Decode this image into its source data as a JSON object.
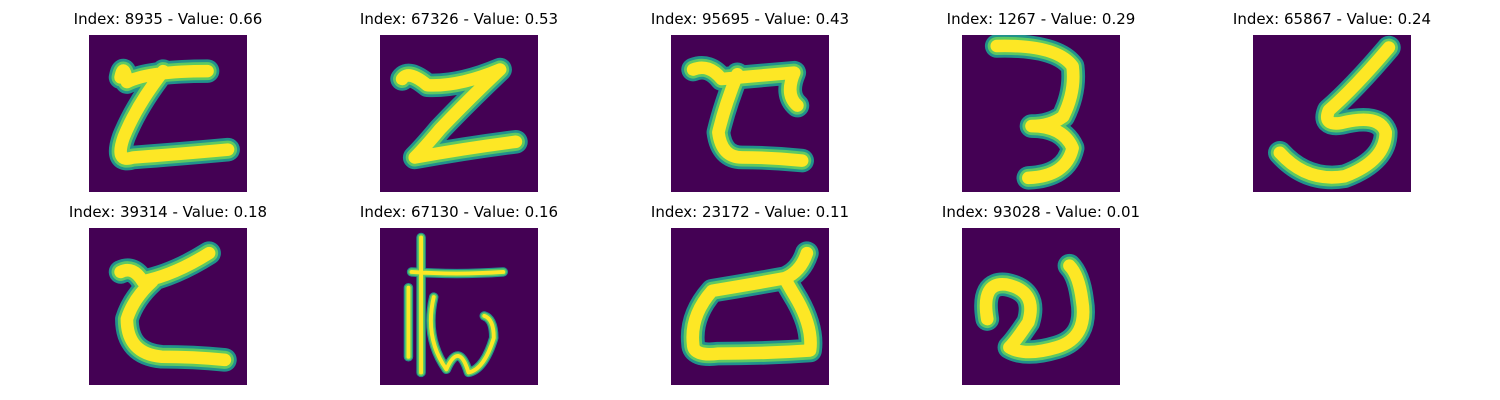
{
  "colors": {
    "background": "#440154",
    "stroke_core": "#fde725",
    "stroke_mid": "#5ec962",
    "stroke_edge": "#21918c"
  },
  "panels": [
    {
      "index": 8935,
      "value": 0.66,
      "title": "Index: 8935 - Value: 0.66",
      "glyph": "handwritten-character-1"
    },
    {
      "index": 67326,
      "value": 0.53,
      "title": "Index: 67326 - Value: 0.53",
      "glyph": "handwritten-character-2"
    },
    {
      "index": 95695,
      "value": 0.43,
      "title": "Index: 95695 - Value: 0.43",
      "glyph": "handwritten-character-3"
    },
    {
      "index": 1267,
      "value": 0.29,
      "title": "Index: 1267 - Value: 0.29",
      "glyph": "handwritten-character-4"
    },
    {
      "index": 65867,
      "value": 0.24,
      "title": "Index: 65867 - Value: 0.24",
      "glyph": "handwritten-character-5"
    },
    {
      "index": 39314,
      "value": 0.18,
      "title": "Index: 39314 - Value: 0.18",
      "glyph": "handwritten-character-6"
    },
    {
      "index": 67130,
      "value": 0.16,
      "title": "Index: 67130 - Value: 0.16",
      "glyph": "handwritten-character-7"
    },
    {
      "index": 23172,
      "value": 0.11,
      "title": "Index: 23172 - Value: 0.11",
      "glyph": "handwritten-character-8"
    },
    {
      "index": 93028,
      "value": 0.01,
      "title": "Index: 93028 - Value: 0.01",
      "glyph": "handwritten-character-9"
    }
  ]
}
